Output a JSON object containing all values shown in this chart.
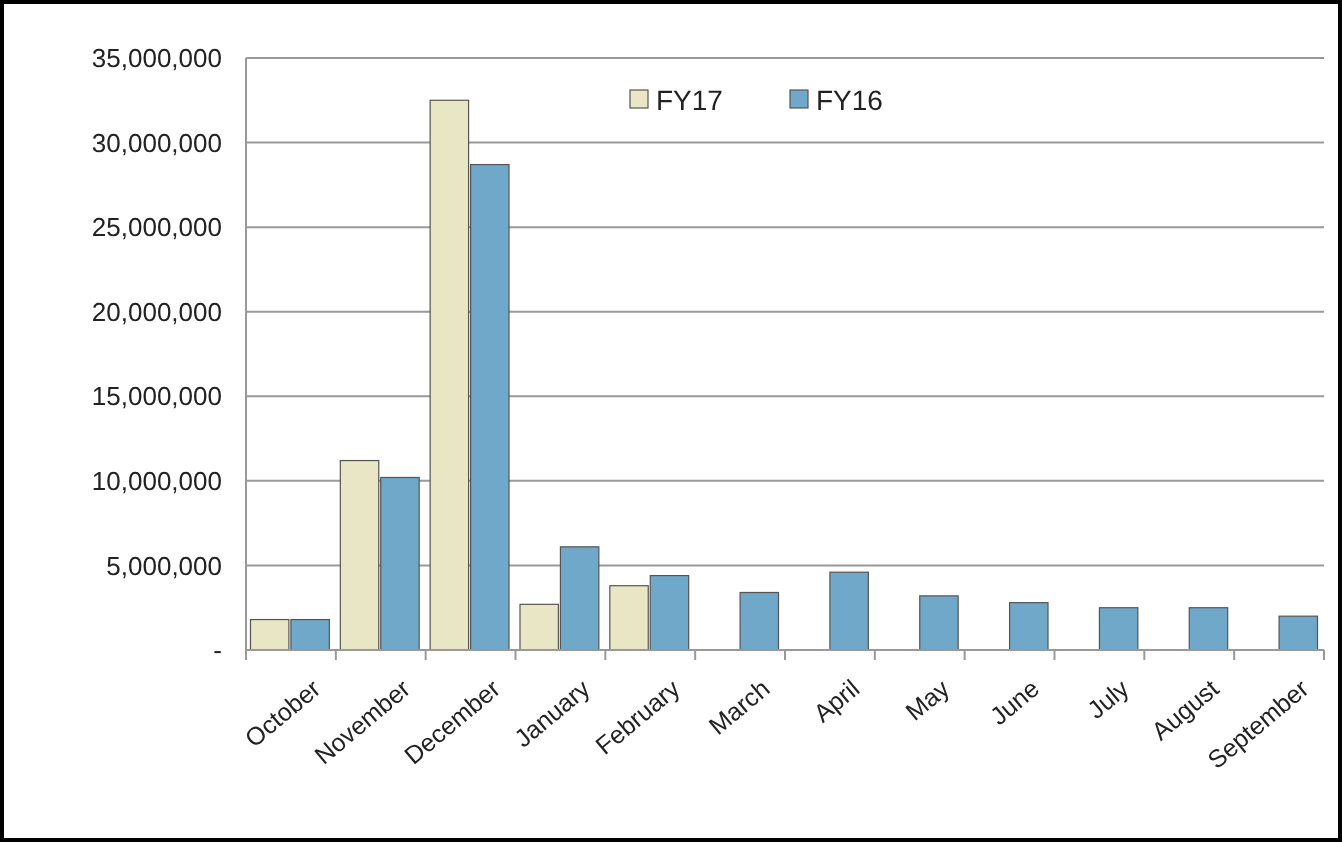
{
  "chart_data": {
    "type": "bar",
    "categories": [
      "October",
      "November",
      "December",
      "January",
      "February",
      "March",
      "April",
      "May",
      "June",
      "July",
      "August",
      "September"
    ],
    "series": [
      {
        "name": "FY17",
        "color": "#e8e6c4",
        "values": [
          1800000,
          11200000,
          32500000,
          2700000,
          3800000,
          null,
          null,
          null,
          null,
          null,
          null,
          null
        ]
      },
      {
        "name": "FY16",
        "color": "#6fa8c8",
        "values": [
          1800000,
          10200000,
          28700000,
          6100000,
          4400000,
          3400000,
          4600000,
          3200000,
          2800000,
          2500000,
          2500000,
          2000000
        ]
      }
    ],
    "ylim": [
      0,
      35000000
    ],
    "yticks": [
      {
        "value": 0,
        "label": "-"
      },
      {
        "value": 5000000,
        "label": "5,000,000"
      },
      {
        "value": 10000000,
        "label": "10,000,000"
      },
      {
        "value": 15000000,
        "label": "15,000,000"
      },
      {
        "value": 20000000,
        "label": "20,000,000"
      },
      {
        "value": 25000000,
        "label": "25,000,000"
      },
      {
        "value": 30000000,
        "label": "30,000,000"
      },
      {
        "value": 35000000,
        "label": "35,000,000"
      }
    ],
    "grid": "y",
    "legend": "top"
  }
}
